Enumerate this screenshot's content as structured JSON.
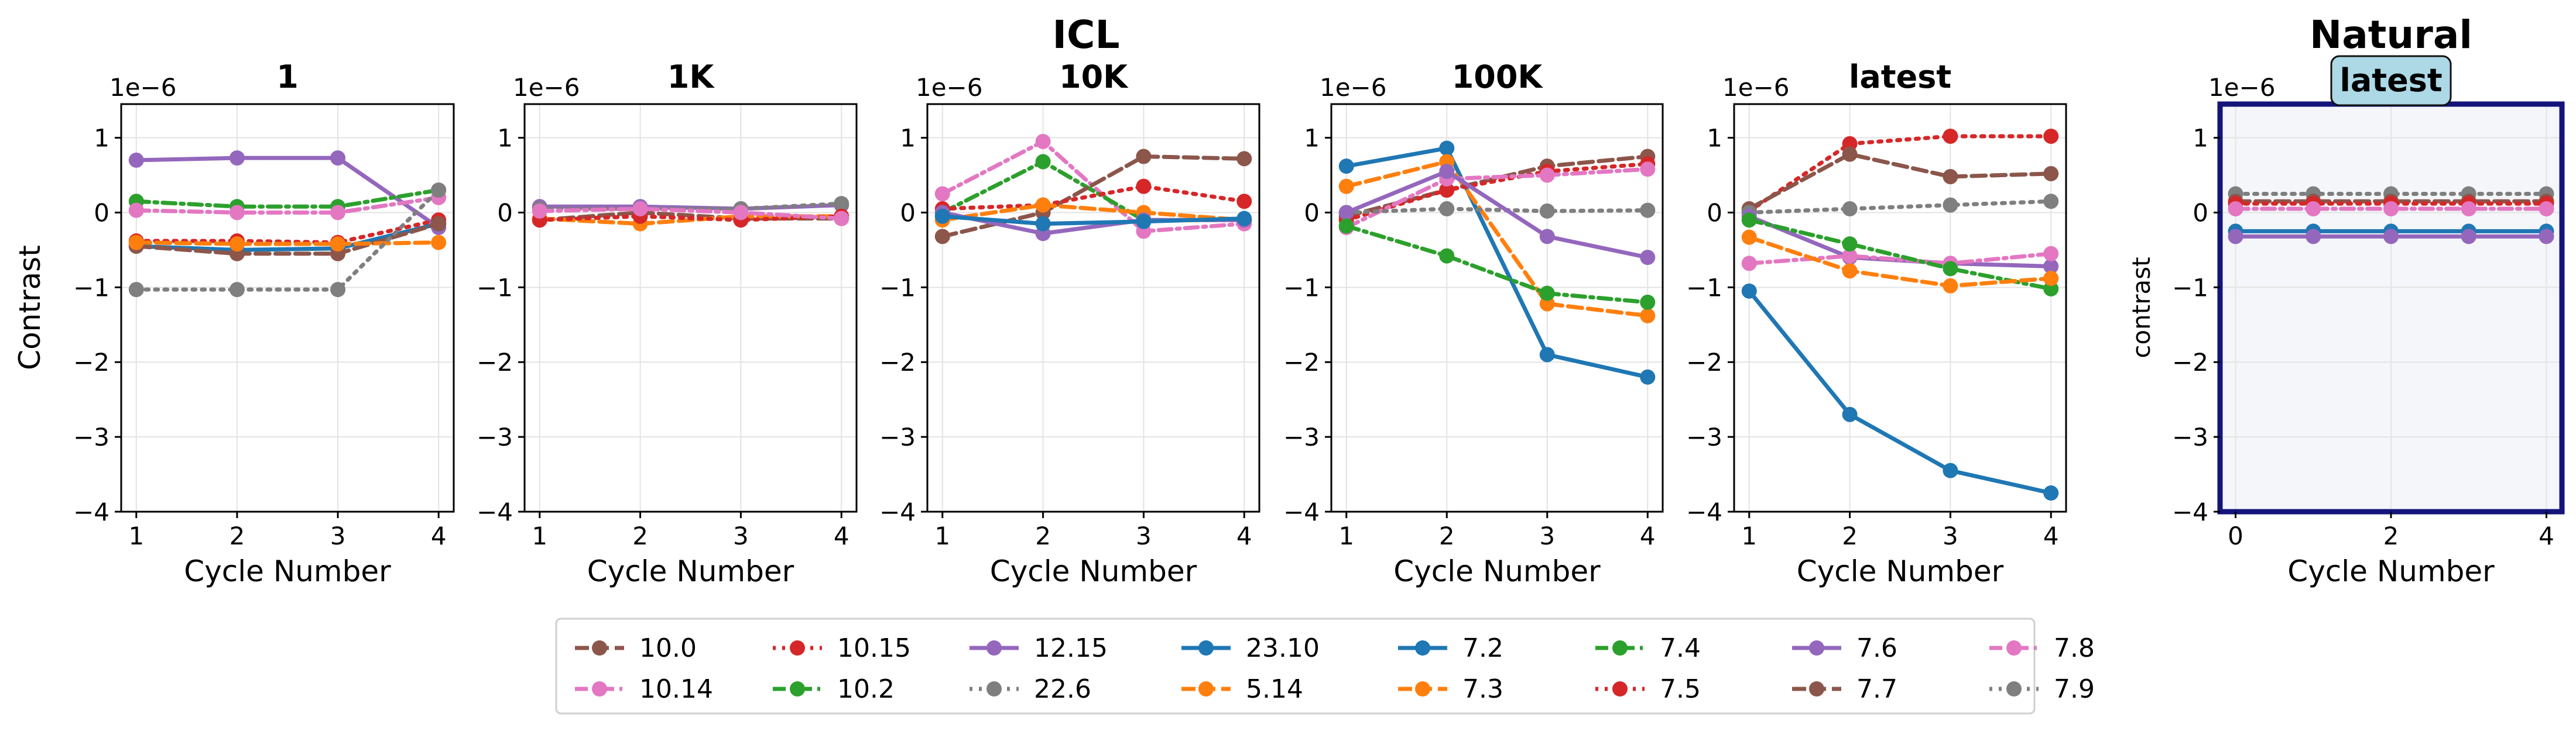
{
  "figure": {
    "group_titles": [
      {
        "id": "icl",
        "text": "ICL"
      },
      {
        "id": "natural",
        "text": "Natural"
      }
    ],
    "offset_label": "1e−6",
    "xlabel": "Cycle Number",
    "ylabel_left": "Contrast",
    "ylabel_right": "contrast",
    "legend_columns": 8
  },
  "chart_data": [
    {
      "type": "line",
      "title": "1",
      "group": "ICL",
      "x": [
        1,
        2,
        3,
        4
      ],
      "xlim": [
        0.85,
        4.15
      ],
      "ylim": [
        -4,
        1.45
      ],
      "xticks": [
        1,
        2,
        3,
        4
      ],
      "yticks": [
        -4,
        -3,
        -2,
        -1,
        0,
        1
      ],
      "xlabel": "Cycle Number",
      "ylabel": "Contrast",
      "grid": true,
      "series": [
        {
          "name": "12.15",
          "values": [
            0.7,
            0.73,
            0.73,
            -0.2
          ]
        },
        {
          "name": "7.4",
          "values": [
            0.15,
            0.08,
            0.08,
            0.3
          ]
        },
        {
          "name": "7.8",
          "values": [
            0.03,
            0.0,
            0.0,
            0.2
          ]
        },
        {
          "name": "10.15",
          "values": [
            -0.38,
            -0.38,
            -0.4,
            -0.1
          ]
        },
        {
          "name": "7.2",
          "values": [
            -0.45,
            -0.5,
            -0.48,
            -0.15
          ]
        },
        {
          "name": "10.0",
          "values": [
            -0.45,
            -0.55,
            -0.55,
            -0.15
          ]
        },
        {
          "name": "5.14",
          "values": [
            -0.4,
            -0.42,
            -0.42,
            -0.4
          ]
        },
        {
          "name": "22.6",
          "values": [
            -1.03,
            -1.03,
            -1.03,
            0.3
          ]
        }
      ]
    },
    {
      "type": "line",
      "title": "1K",
      "group": "ICL",
      "x": [
        1,
        2,
        3,
        4
      ],
      "xlim": [
        0.85,
        4.15
      ],
      "ylim": [
        -4,
        1.45
      ],
      "xticks": [
        1,
        2,
        3,
        4
      ],
      "yticks": [
        -4,
        -3,
        -2,
        -1,
        0,
        1
      ],
      "xlabel": "Cycle Number",
      "ylabel": "",
      "grid": true,
      "series": [
        {
          "name": "12.15",
          "values": [
            0.08,
            0.08,
            0.05,
            0.1
          ]
        },
        {
          "name": "7.9",
          "values": [
            0.05,
            0.05,
            0.05,
            0.12
          ]
        },
        {
          "name": "10.0",
          "values": [
            -0.1,
            0.0,
            -0.08,
            -0.08
          ]
        },
        {
          "name": "5.14",
          "values": [
            -0.08,
            -0.15,
            -0.05,
            -0.05
          ]
        },
        {
          "name": "7.5",
          "values": [
            -0.1,
            -0.05,
            -0.1,
            -0.05
          ]
        },
        {
          "name": "7.8",
          "values": [
            0.02,
            0.05,
            0.0,
            -0.08
          ]
        }
      ]
    },
    {
      "type": "line",
      "title": "10K",
      "group": "ICL",
      "x": [
        1,
        2,
        3,
        4
      ],
      "xlim": [
        0.85,
        4.15
      ],
      "ylim": [
        -4,
        1.45
      ],
      "xticks": [
        1,
        2,
        3,
        4
      ],
      "yticks": [
        -4,
        -3,
        -2,
        -1,
        0,
        1
      ],
      "xlabel": "Cycle Number",
      "ylabel": "",
      "grid": true,
      "series": [
        {
          "name": "10.14",
          "values": [
            0.25,
            0.95,
            -0.25,
            -0.15
          ]
        },
        {
          "name": "7.4",
          "values": [
            0.0,
            0.68,
            -0.1,
            -0.1
          ]
        },
        {
          "name": "10.0",
          "values": [
            -0.32,
            0.0,
            0.75,
            0.72
          ]
        },
        {
          "name": "7.5",
          "values": [
            0.05,
            0.1,
            0.35,
            0.15
          ]
        },
        {
          "name": "5.14",
          "values": [
            -0.1,
            0.1,
            0.0,
            -0.1
          ]
        },
        {
          "name": "12.15",
          "values": [
            0.0,
            -0.28,
            -0.1,
            -0.1
          ]
        },
        {
          "name": "23.10",
          "values": [
            -0.05,
            -0.15,
            -0.12,
            -0.08
          ]
        }
      ]
    },
    {
      "type": "line",
      "title": "100K",
      "group": "ICL",
      "x": [
        1,
        2,
        3,
        4
      ],
      "xlim": [
        0.85,
        4.15
      ],
      "ylim": [
        -4,
        1.45
      ],
      "xticks": [
        1,
        2,
        3,
        4
      ],
      "yticks": [
        -4,
        -3,
        -2,
        -1,
        0,
        1
      ],
      "xlabel": "Cycle Number",
      "ylabel": "",
      "grid": true,
      "series": [
        {
          "name": "7.2",
          "values": [
            0.62,
            0.86,
            -1.9,
            -2.2
          ]
        },
        {
          "name": "7.3",
          "values": [
            0.35,
            0.68,
            -1.22,
            -1.38
          ]
        },
        {
          "name": "7.7",
          "values": [
            -0.05,
            0.3,
            0.62,
            0.75
          ]
        },
        {
          "name": "7.5",
          "values": [
            -0.1,
            0.3,
            0.55,
            0.65
          ]
        },
        {
          "name": "7.8",
          "values": [
            -0.2,
            0.45,
            0.5,
            0.58
          ]
        },
        {
          "name": "7.9",
          "values": [
            0.0,
            0.05,
            0.02,
            0.03
          ]
        },
        {
          "name": "7.6",
          "values": [
            0.0,
            0.55,
            -0.32,
            -0.6
          ]
        },
        {
          "name": "7.4",
          "values": [
            -0.18,
            -0.58,
            -1.08,
            -1.2
          ]
        }
      ]
    },
    {
      "type": "line",
      "title": "latest",
      "group": "ICL",
      "x": [
        1,
        2,
        3,
        4
      ],
      "xlim": [
        0.85,
        4.15
      ],
      "ylim": [
        -4,
        1.45
      ],
      "xticks": [
        1,
        2,
        3,
        4
      ],
      "yticks": [
        -4,
        -3,
        -2,
        -1,
        0,
        1
      ],
      "xlabel": "Cycle Number",
      "ylabel": "",
      "grid": true,
      "series": [
        {
          "name": "7.5",
          "values": [
            0.02,
            0.92,
            1.02,
            1.02
          ]
        },
        {
          "name": "7.7",
          "values": [
            0.05,
            0.78,
            0.48,
            0.52
          ]
        },
        {
          "name": "7.9",
          "values": [
            0.0,
            0.05,
            0.1,
            0.15
          ]
        },
        {
          "name": "7.6",
          "values": [
            -0.05,
            -0.6,
            -0.68,
            -0.72
          ]
        },
        {
          "name": "7.8",
          "values": [
            -0.68,
            -0.58,
            -0.68,
            -0.55
          ]
        },
        {
          "name": "7.4",
          "values": [
            -0.1,
            -0.42,
            -0.75,
            -1.02
          ]
        },
        {
          "name": "7.3",
          "values": [
            -0.33,
            -0.78,
            -0.98,
            -0.88
          ]
        },
        {
          "name": "7.2",
          "values": [
            -1.05,
            -2.7,
            -3.45,
            -3.75
          ]
        }
      ]
    },
    {
      "type": "line",
      "title": "latest",
      "group": "Natural",
      "x": [
        0,
        1,
        2,
        3,
        4
      ],
      "xlim": [
        -0.2,
        4.2
      ],
      "ylim": [
        -4,
        1.45
      ],
      "xticks": [
        0,
        2,
        4
      ],
      "yticks": [
        -4,
        -3,
        -2,
        -1,
        0,
        1
      ],
      "xlabel": "Cycle Number",
      "ylabel": "contrast",
      "grid": true,
      "series": [
        {
          "name": "7.9",
          "values": [
            0.25,
            0.25,
            0.25,
            0.25,
            0.25
          ]
        },
        {
          "name": "10.0",
          "values": [
            0.15,
            0.15,
            0.15,
            0.15,
            0.15
          ]
        },
        {
          "name": "7.5",
          "values": [
            0.12,
            0.12,
            0.12,
            0.12,
            0.12
          ]
        },
        {
          "name": "7.8",
          "values": [
            0.05,
            0.05,
            0.05,
            0.05,
            0.05
          ]
        },
        {
          "name": "23.10",
          "values": [
            -0.25,
            -0.25,
            -0.25,
            -0.25,
            -0.25
          ]
        },
        {
          "name": "12.15",
          "values": [
            -0.32,
            -0.32,
            -0.32,
            -0.32,
            -0.32
          ]
        }
      ]
    }
  ],
  "legend": {
    "entries": [
      {
        "name": "10.0",
        "color": "#8c564b",
        "style": "dashed"
      },
      {
        "name": "10.14",
        "color": "#e377c2",
        "style": "dashdot"
      },
      {
        "name": "10.15",
        "color": "#d62728",
        "style": "dotted"
      },
      {
        "name": "10.2",
        "color": "#2ca02c",
        "style": "dashdot"
      },
      {
        "name": "12.15",
        "color": "#9467bd",
        "style": "solid"
      },
      {
        "name": "22.6",
        "color": "#7f7f7f",
        "style": "dotted"
      },
      {
        "name": "23.10",
        "color": "#1f77b4",
        "style": "solid"
      },
      {
        "name": "5.14",
        "color": "#ff7f0e",
        "style": "dashed"
      },
      {
        "name": "7.2",
        "color": "#1f77b4",
        "style": "solid"
      },
      {
        "name": "7.3",
        "color": "#ff7f0e",
        "style": "dashed"
      },
      {
        "name": "7.4",
        "color": "#2ca02c",
        "style": "dashdot"
      },
      {
        "name": "7.5",
        "color": "#d62728",
        "style": "dotted"
      },
      {
        "name": "7.6",
        "color": "#9467bd",
        "style": "solid"
      },
      {
        "name": "7.7",
        "color": "#8c564b",
        "style": "dashed"
      },
      {
        "name": "7.8",
        "color": "#e377c2",
        "style": "dashdot"
      },
      {
        "name": "7.9",
        "color": "#7f7f7f",
        "style": "dotted"
      }
    ]
  },
  "colors": {
    "natural_frame": "#14147a",
    "natural_panel_bg": "#f4f6f9",
    "natural_badge_bg": "#add8e6",
    "grid": "#e3e3e3"
  }
}
